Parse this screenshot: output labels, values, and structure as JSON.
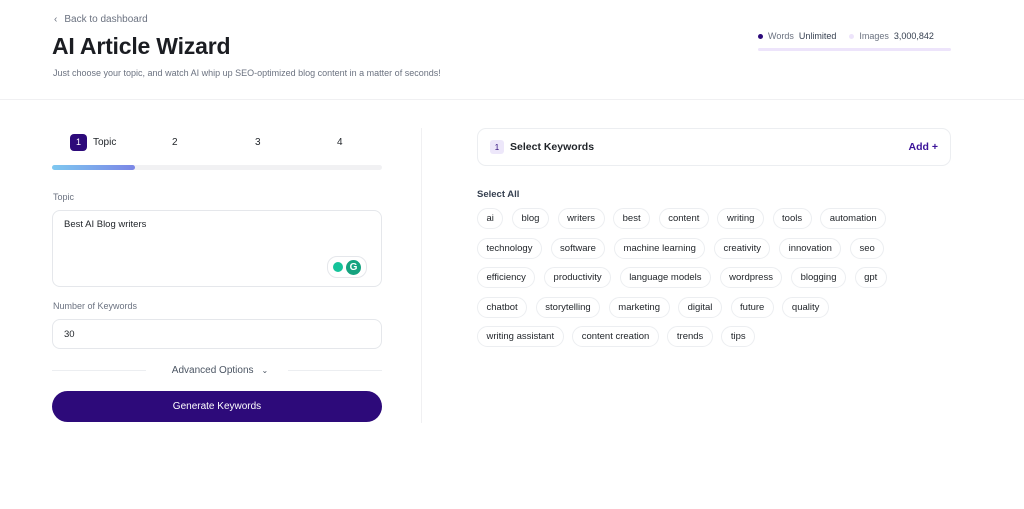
{
  "header": {
    "back_label": "Back to dashboard",
    "title": "AI Article Wizard",
    "subtitle": "Just choose your topic, and watch AI whip up SEO-optimized blog content in a matter of seconds!"
  },
  "stats": {
    "words_label": "Words",
    "words_value": "Unlimited",
    "images_label": "Images",
    "images_value": "3,000,842",
    "words_color": "#2d0a7a",
    "images_color": "#ede4fb"
  },
  "steps": {
    "items": [
      {
        "num": "1",
        "label": "Topic"
      },
      {
        "num": "2"
      },
      {
        "num": "3"
      },
      {
        "num": "4"
      }
    ],
    "active": 1,
    "progress_percent": 25
  },
  "form": {
    "topic_label": "Topic",
    "topic_value": "Best AI Blog writers",
    "keywords_label": "Number of Keywords",
    "keywords_value": "30",
    "advanced_label": "Advanced Options",
    "generate_label": "Generate Keywords"
  },
  "keywords": {
    "step_num": "1",
    "title": "Select Keywords",
    "add_label": "Add +",
    "select_all_label": "Select All",
    "rows": [
      [
        "ai",
        "blog",
        "writers",
        "best",
        "content",
        "writing",
        "tools",
        "automation"
      ],
      [
        "technology",
        "software",
        "machine learning",
        "creativity",
        "innovation",
        "seo"
      ],
      [
        "efficiency",
        "productivity",
        "language models",
        "wordpress",
        "blogging",
        "gpt"
      ],
      [
        "chatbot",
        "storytelling",
        "marketing",
        "digital",
        "future",
        "quality"
      ],
      [
        "writing assistant",
        "content creation",
        "trends",
        "tips"
      ]
    ]
  },
  "colors": {
    "primary": "#2d0a7a",
    "accent": "#3b1399"
  }
}
